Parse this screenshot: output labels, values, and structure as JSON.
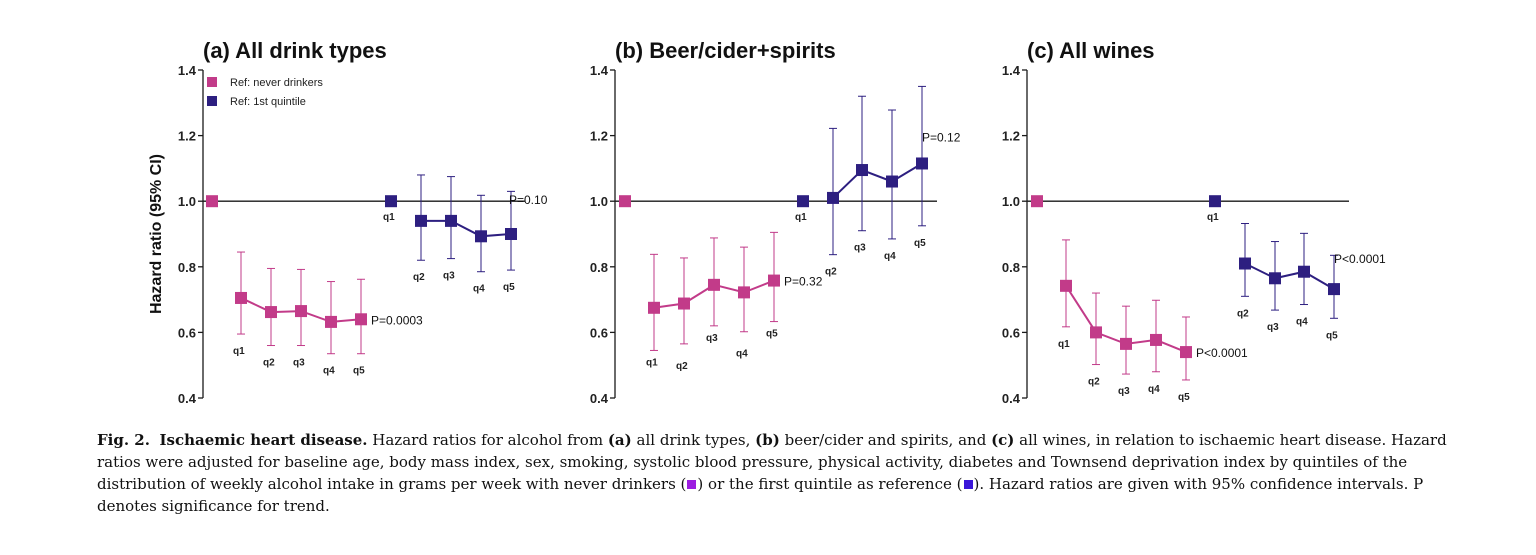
{
  "colors": {
    "never": "#c23b89",
    "quintile": "#2d1f80",
    "axis": "#1a1a1a"
  },
  "legend": {
    "never_label": "Ref: never drinkers",
    "quintile_label": "Ref: 1st quintile"
  },
  "y_axis": {
    "label": "Hazard ratio (95% CI)",
    "ticks": [
      "0.4",
      "0.6",
      "0.8",
      "1.0",
      "1.2",
      "1.4"
    ]
  },
  "chart_data": [
    {
      "type": "scatter",
      "title": "(a) All drink types",
      "ylabel": "Hazard ratio (95% CI)",
      "ylim": [
        0.4,
        1.4
      ],
      "reference_line": 1.0,
      "series": [
        {
          "name": "Ref: never drinkers",
          "ref": 1.0,
          "categories": [
            "q1",
            "q2",
            "q3",
            "q4",
            "q5"
          ],
          "values": [
            0.705,
            0.662,
            0.665,
            0.632,
            0.64
          ],
          "lower": [
            0.595,
            0.56,
            0.56,
            0.535,
            0.535
          ],
          "upper": [
            0.845,
            0.795,
            0.792,
            0.755,
            0.762
          ],
          "p_label": "P=0.0003"
        },
        {
          "name": "Ref: 1st quintile",
          "ref": 1.0,
          "categories": [
            "q1",
            "q2",
            "q3",
            "q4",
            "q5"
          ],
          "values": [
            1.0,
            0.94,
            0.94,
            0.893,
            0.9
          ],
          "lower": [
            1.0,
            0.82,
            0.825,
            0.785,
            0.79
          ],
          "upper": [
            1.0,
            1.08,
            1.075,
            1.018,
            1.03
          ],
          "p_label": "P=0.10"
        }
      ]
    },
    {
      "type": "scatter",
      "title": "(b) Beer/cider+spirits",
      "ylim": [
        0.4,
        1.4
      ],
      "reference_line": 1.0,
      "series": [
        {
          "name": "Ref: never drinkers",
          "ref": 1.0,
          "categories": [
            "q1",
            "q2",
            "q3",
            "q4",
            "q5"
          ],
          "values": [
            0.675,
            0.688,
            0.745,
            0.722,
            0.758
          ],
          "lower": [
            0.545,
            0.565,
            0.62,
            0.602,
            0.633
          ],
          "upper": [
            0.838,
            0.827,
            0.888,
            0.86,
            0.905
          ],
          "p_label": "P=0.32"
        },
        {
          "name": "Ref: 1st quintile",
          "ref": 1.0,
          "categories": [
            "q1",
            "q2",
            "q3",
            "q4",
            "q5"
          ],
          "values": [
            1.0,
            1.01,
            1.095,
            1.06,
            1.115
          ],
          "lower": [
            1.0,
            0.837,
            0.91,
            0.885,
            0.925
          ],
          "upper": [
            1.0,
            1.222,
            1.32,
            1.278,
            1.35
          ],
          "p_label": "P=0.12"
        }
      ]
    },
    {
      "type": "scatter",
      "title": "(c) All wines",
      "ylim": [
        0.4,
        1.4
      ],
      "reference_line": 1.0,
      "series": [
        {
          "name": "Ref: never drinkers",
          "ref": 1.0,
          "categories": [
            "q1",
            "q2",
            "q3",
            "q4",
            "q5"
          ],
          "values": [
            0.742,
            0.6,
            0.565,
            0.577,
            0.54
          ],
          "lower": [
            0.617,
            0.502,
            0.473,
            0.48,
            0.455
          ],
          "upper": [
            0.882,
            0.72,
            0.68,
            0.698,
            0.647
          ],
          "p_label": "P<0.0001"
        },
        {
          "name": "Ref: 1st quintile",
          "ref": 1.0,
          "categories": [
            "q1",
            "q2",
            "q3",
            "q4",
            "q5"
          ],
          "values": [
            1.0,
            0.81,
            0.765,
            0.785,
            0.732
          ],
          "lower": [
            1.0,
            0.71,
            0.668,
            0.685,
            0.643
          ],
          "upper": [
            1.0,
            0.932,
            0.877,
            0.902,
            0.835
          ],
          "p_label": "P<0.0001"
        }
      ]
    }
  ],
  "caption": {
    "fig_label": "Fig. 2.",
    "title": "Ischaemic heart disease.",
    "p1": " Hazard ratios for alcohol from ",
    "a": "(a)",
    "p2": " all drink types, ",
    "b": "(b)",
    "p3": " beer/cider and spirits, and ",
    "c": "(c)",
    "p4": " all wines, in relation to ischaemic heart disease. Hazard ratios were adjusted for baseline age, body mass index, sex, smoking, systolic blood pressure, physical activity, diabetes and Townsend deprivation index by quintiles of the distribution of weekly alcohol intake in grams per week with never drinkers (",
    "p5": ") or the first quintile as reference (",
    "p6": "). Hazard ratios are given with 95% confidence intervals. P denotes significance for trend."
  }
}
